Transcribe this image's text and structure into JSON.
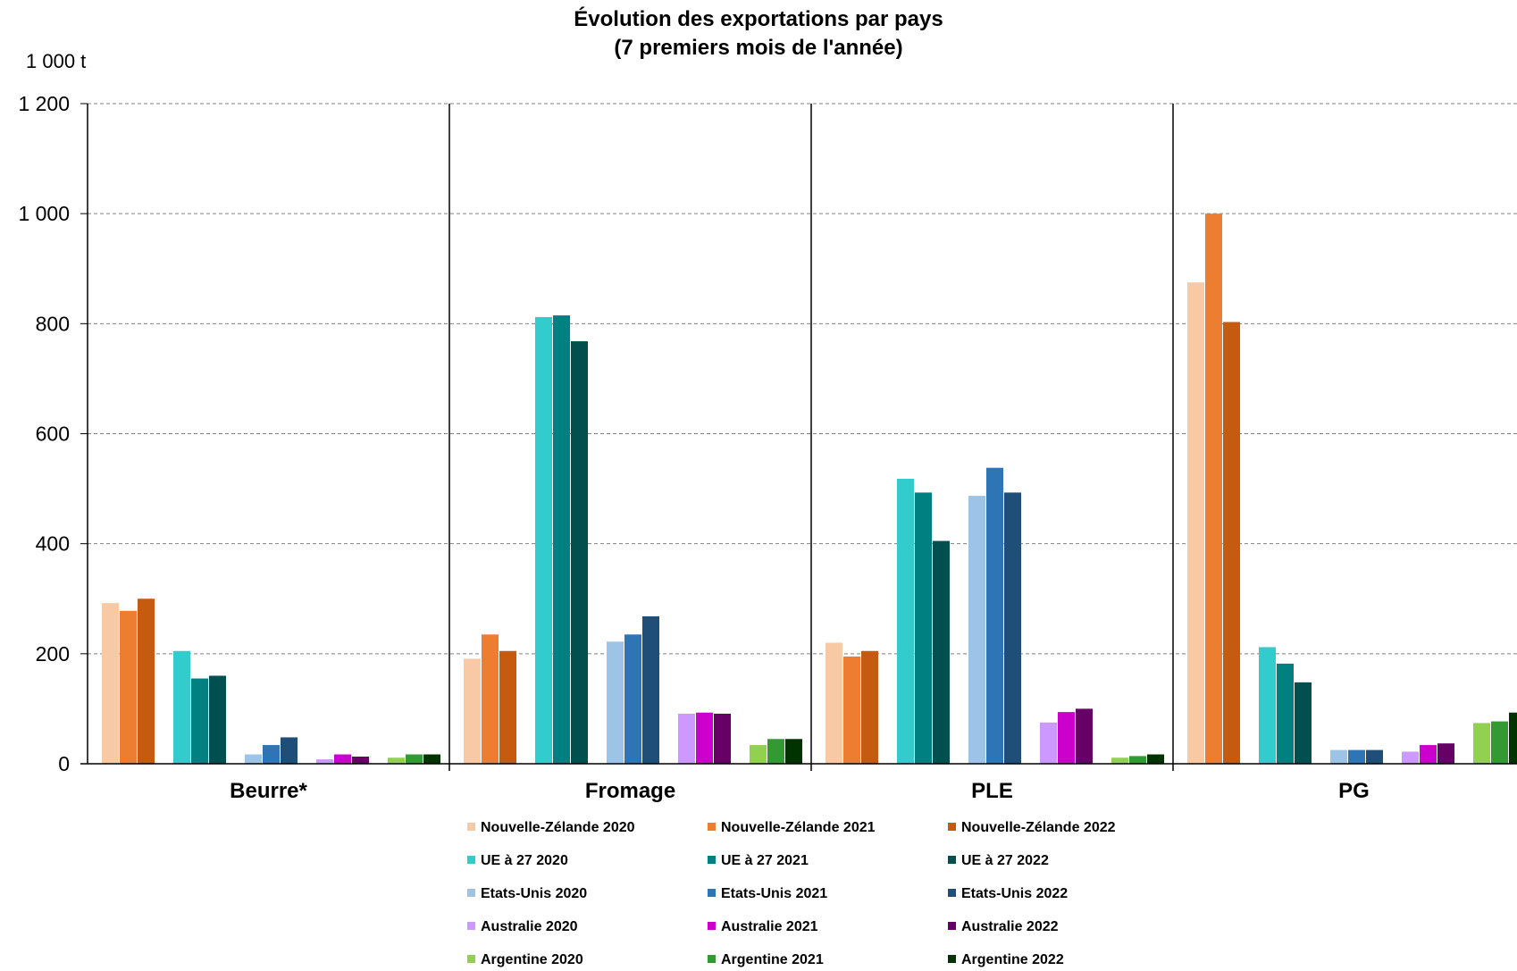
{
  "chart_data": {
    "type": "bar",
    "title": "Évolution des exportations par pays",
    "subtitle": "(7 premiers mois de l'année)",
    "ylabel": "1 000 t",
    "ylim": [
      0,
      1200
    ],
    "yticks": [
      0,
      200,
      400,
      600,
      800,
      1000,
      1200
    ],
    "ytick_labels": [
      "0",
      "200",
      "400",
      "600",
      "800",
      "1 000",
      "1 200"
    ],
    "grid": true,
    "legend_position": "bottom",
    "categories": [
      "Beurre*",
      "Fromage",
      "PLE",
      "PG"
    ],
    "series": [
      {
        "name": "Nouvelle-Zélande 2020",
        "color": "#F8C9A5",
        "values": [
          292,
          191,
          220,
          875
        ]
      },
      {
        "name": "Nouvelle-Zélande 2021",
        "color": "#ED7D31",
        "values": [
          278,
          235,
          195,
          1000
        ]
      },
      {
        "name": "Nouvelle-Zélande 2022",
        "color": "#C55A11",
        "values": [
          300,
          205,
          205,
          803
        ]
      },
      {
        "name": "UE à 27 2020",
        "color": "#33CCCC",
        "values": [
          205,
          812,
          518,
          212
        ]
      },
      {
        "name": "UE à 27 2021",
        "color": "#008080",
        "values": [
          155,
          815,
          493,
          182
        ]
      },
      {
        "name": "UE à 27 2022",
        "color": "#024F4F",
        "values": [
          160,
          768,
          405,
          148
        ]
      },
      {
        "name": "Etats-Unis 2020",
        "color": "#9DC3E6",
        "values": [
          17,
          222,
          487,
          25
        ]
      },
      {
        "name": "Etats-Unis 2021",
        "color": "#2E75B6",
        "values": [
          34,
          235,
          538,
          25
        ]
      },
      {
        "name": "Etats-Unis 2022",
        "color": "#1F4E79",
        "values": [
          48,
          268,
          493,
          25
        ]
      },
      {
        "name": "Australie 2020",
        "color": "#CC99FF",
        "values": [
          8,
          91,
          75,
          22
        ]
      },
      {
        "name": "Australie 2021",
        "color": "#CC00CC",
        "values": [
          17,
          93,
          94,
          34
        ]
      },
      {
        "name": "Australie 2022",
        "color": "#660066",
        "values": [
          13,
          91,
          100,
          37
        ]
      },
      {
        "name": "Argentine 2020",
        "color": "#92D050",
        "values": [
          11,
          34,
          11,
          74
        ]
      },
      {
        "name": "Argentine 2021",
        "color": "#339933",
        "values": [
          17,
          45,
          14,
          77
        ]
      },
      {
        "name": "Argentine 2022",
        "color": "#003300",
        "values": [
          17,
          45,
          17,
          93
        ]
      }
    ]
  }
}
